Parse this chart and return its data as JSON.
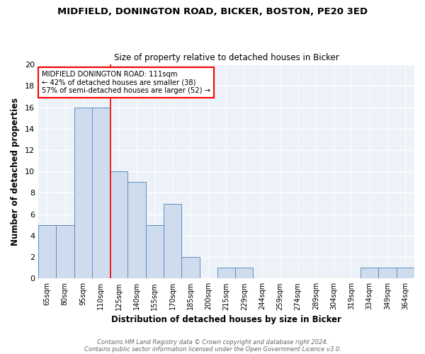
{
  "title": "MIDFIELD, DONINGTON ROAD, BICKER, BOSTON, PE20 3ED",
  "subtitle": "Size of property relative to detached houses in Bicker",
  "xlabel": "Distribution of detached houses by size in Bicker",
  "ylabel": "Number of detached properties",
  "bar_labels": [
    "65sqm",
    "80sqm",
    "95sqm",
    "110sqm",
    "125sqm",
    "140sqm",
    "155sqm",
    "170sqm",
    "185sqm",
    "200sqm",
    "215sqm",
    "229sqm",
    "244sqm",
    "259sqm",
    "274sqm",
    "289sqm",
    "304sqm",
    "319sqm",
    "334sqm",
    "349sqm",
    "364sqm"
  ],
  "bar_values": [
    5,
    5,
    16,
    16,
    10,
    9,
    5,
    7,
    2,
    0,
    1,
    1,
    0,
    0,
    0,
    0,
    0,
    0,
    1,
    1,
    1
  ],
  "bar_color": "#cfdcee",
  "bar_edge_color": "#5b8dc0",
  "bar_width": 1.0,
  "red_line_x": 3.53,
  "ylim": [
    0,
    20
  ],
  "yticks": [
    0,
    2,
    4,
    6,
    8,
    10,
    12,
    14,
    16,
    18,
    20
  ],
  "background_color": "#edf2f9",
  "annotation_text": "MIDFIELD DONINGTON ROAD: 111sqm\n← 42% of detached houses are smaller (38)\n57% of semi-detached houses are larger (52) →",
  "footer1": "Contains HM Land Registry data © Crown copyright and database right 2024.",
  "footer2": "Contains public sector information licensed under the Open Government Licence v3.0."
}
